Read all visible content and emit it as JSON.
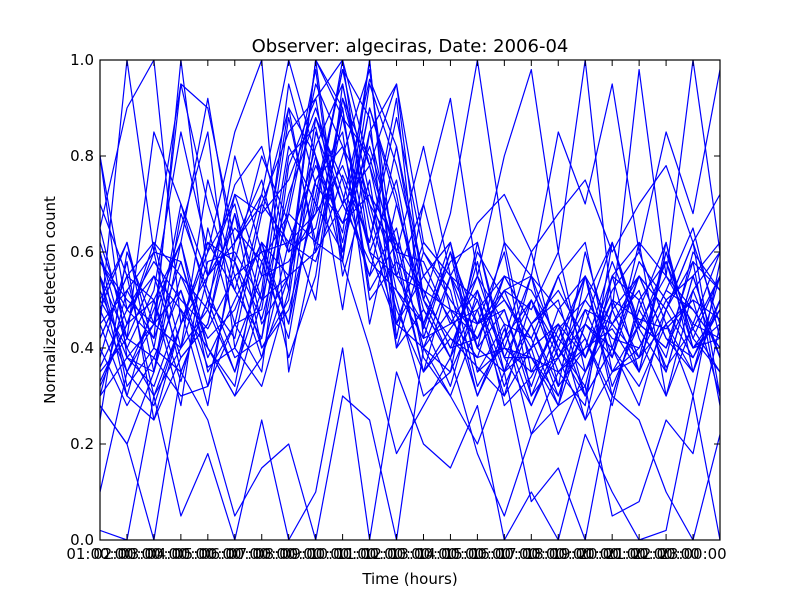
{
  "chart_data": {
    "type": "line",
    "title": "Observer: algeciras, Date: 2006-04",
    "xlabel": "Time (hours)",
    "ylabel": "Normalized detection count",
    "xlim": [
      1,
      24
    ],
    "ylim": [
      0.0,
      1.0
    ],
    "x_ticks": [
      {
        "value": 1,
        "label": "01:00:00"
      },
      {
        "value": 2,
        "label": "02:00:00"
      },
      {
        "value": 3,
        "label": "03:00:00"
      },
      {
        "value": 4,
        "label": "04:00:00"
      },
      {
        "value": 5,
        "label": "05:00:00"
      },
      {
        "value": 6,
        "label": "06:00:00"
      },
      {
        "value": 7,
        "label": "07:00:00"
      },
      {
        "value": 8,
        "label": "08:00:00"
      },
      {
        "value": 9,
        "label": "09:00:00"
      },
      {
        "value": 10,
        "label": "10:00:00"
      },
      {
        "value": 11,
        "label": "11:00:00"
      },
      {
        "value": 12,
        "label": "12:00:00"
      },
      {
        "value": 13,
        "label": "13:00:00"
      },
      {
        "value": 14,
        "label": "14:00:00"
      },
      {
        "value": 15,
        "label": "15:00:00"
      },
      {
        "value": 16,
        "label": "16:00:00"
      },
      {
        "value": 17,
        "label": "17:00:00"
      },
      {
        "value": 18,
        "label": "18:00:00"
      },
      {
        "value": 19,
        "label": "19:00:00"
      },
      {
        "value": 20,
        "label": "20:00:00"
      },
      {
        "value": 21,
        "label": "21:00:00"
      },
      {
        "value": 22,
        "label": "22:00:00"
      },
      {
        "value": 23,
        "label": "23:00:00"
      }
    ],
    "y_ticks": [
      {
        "value": 0.0,
        "label": "0.0"
      },
      {
        "value": 0.2,
        "label": "0.2"
      },
      {
        "value": 0.4,
        "label": "0.4"
      },
      {
        "value": 0.6,
        "label": "0.6"
      },
      {
        "value": 0.8,
        "label": "0.8"
      },
      {
        "value": 1.0,
        "label": "1.0"
      }
    ],
    "grid": false,
    "color": "#0000ff",
    "x": [
      1,
      2,
      3,
      4,
      5,
      6,
      7,
      8,
      9,
      10,
      11,
      12,
      13,
      14,
      15,
      16,
      17,
      18,
      19,
      20,
      21,
      22,
      23,
      24
    ],
    "series": [
      {
        "values": [
          0.8,
          0.48,
          0.42,
          1.0,
          0.55,
          0.62,
          0.7,
          0.85,
          0.92,
          1.0,
          0.78,
          0.95,
          0.62,
          0.55,
          0.45,
          0.52,
          0.38,
          0.3,
          0.45,
          0.4,
          0.55,
          0.48,
          0.62,
          0.45
        ]
      },
      {
        "values": [
          0.55,
          0.3,
          0.25,
          0.38,
          0.45,
          0.68,
          0.5,
          0.72,
          0.88,
          0.7,
          0.96,
          0.82,
          0.5,
          0.42,
          0.36,
          0.3,
          0.4,
          0.22,
          0.35,
          0.5,
          0.38,
          0.6,
          0.42,
          0.55
        ]
      },
      {
        "values": [
          0.45,
          0.52,
          0.6,
          0.58,
          0.4,
          0.32,
          0.62,
          0.55,
          1.0,
          0.88,
          0.6,
          0.75,
          0.45,
          0.58,
          0.62,
          0.38,
          0.5,
          0.35,
          0.28,
          0.62,
          0.45,
          0.4,
          0.52,
          0.38
        ]
      },
      {
        "values": [
          0.3,
          0.38,
          0.35,
          0.62,
          0.92,
          0.58,
          0.4,
          0.48,
          0.7,
          0.98,
          0.72,
          0.55,
          0.7,
          0.48,
          0.3,
          0.44,
          0.28,
          0.4,
          0.55,
          0.3,
          0.48,
          0.62,
          0.35,
          0.5
        ]
      },
      {
        "values": [
          0.62,
          0.45,
          0.5,
          0.33,
          0.55,
          0.74,
          0.82,
          0.6,
          0.65,
          0.9,
          0.52,
          0.62,
          0.4,
          0.35,
          0.48,
          0.55,
          0.45,
          0.32,
          0.4,
          0.44,
          0.35,
          0.48,
          0.58,
          0.28
        ]
      },
      {
        "values": [
          0.25,
          0.6,
          0.45,
          0.52,
          0.36,
          0.4,
          0.55,
          0.9,
          0.8,
          0.64,
          1.0,
          0.45,
          0.55,
          0.62,
          0.4,
          0.35,
          0.55,
          0.48,
          0.38,
          0.55,
          0.62,
          0.3,
          0.45,
          0.6
        ]
      },
      {
        "values": [
          0.48,
          0.35,
          0.28,
          0.45,
          0.62,
          0.58,
          0.46,
          0.68,
          0.95,
          0.82,
          0.7,
          0.6,
          0.35,
          0.44,
          0.52,
          0.28,
          0.34,
          0.45,
          0.3,
          0.4,
          0.58,
          0.5,
          0.4,
          0.48
        ]
      },
      {
        "values": [
          0.7,
          0.55,
          0.62,
          0.4,
          0.48,
          0.8,
          0.6,
          0.45,
          0.72,
          0.98,
          0.88,
          0.4,
          0.48,
          0.38,
          0.6,
          0.5,
          0.42,
          0.55,
          0.62,
          0.35,
          0.4,
          0.52,
          0.65,
          0.42
        ]
      },
      {
        "values": [
          0.4,
          0.28,
          0.38,
          0.3,
          0.32,
          0.45,
          0.7,
          0.62,
          0.58,
          0.76,
          0.62,
          0.88,
          0.6,
          0.52,
          0.3,
          0.42,
          0.6,
          0.38,
          0.25,
          0.48,
          0.55,
          0.42,
          0.38,
          0.5
        ]
      },
      {
        "values": [
          0.58,
          0.5,
          0.45,
          0.95,
          0.7,
          0.52,
          0.42,
          0.8,
          0.86,
          0.62,
          0.9,
          0.72,
          0.44,
          0.6,
          0.45,
          0.6,
          0.3,
          0.44,
          0.5,
          0.62,
          0.44,
          0.35,
          0.55,
          0.62
        ]
      },
      {
        "values": [
          0.35,
          0.42,
          0.55,
          0.48,
          0.28,
          0.62,
          0.75,
          0.52,
          1.0,
          0.9,
          0.5,
          0.58,
          0.52,
          0.4,
          0.55,
          0.45,
          0.22,
          0.35,
          0.42,
          0.28,
          0.5,
          0.58,
          0.44,
          0.35
        ]
      },
      {
        "values": [
          0.5,
          0.62,
          0.4,
          0.7,
          0.5,
          0.35,
          0.52,
          0.95,
          0.74,
          0.66,
          0.82,
          0.62,
          0.4,
          0.48,
          0.42,
          0.52,
          0.48,
          0.6,
          0.35,
          0.45,
          0.38,
          0.45,
          0.3,
          0.58
        ]
      },
      {
        "values": [
          0.28,
          0.2,
          0.35,
          0.55,
          0.42,
          0.48,
          0.62,
          0.38,
          0.55,
          0.92,
          0.7,
          0.5,
          0.3,
          0.35,
          0.62,
          0.4,
          0.38,
          0.28,
          0.45,
          0.38,
          0.62,
          0.55,
          0.48,
          0.4
        ]
      },
      {
        "values": [
          0.6,
          0.4,
          0.52,
          0.85,
          0.6,
          0.7,
          0.45,
          0.55,
          0.8,
          0.58,
          0.95,
          0.78,
          0.55,
          0.46,
          0.38,
          0.55,
          0.52,
          0.42,
          0.55,
          0.32,
          0.45,
          0.4,
          0.58,
          0.52
        ]
      },
      {
        "values": [
          0.42,
          0.55,
          0.3,
          0.4,
          0.75,
          0.55,
          0.38,
          0.62,
          0.68,
          1.0,
          0.6,
          0.45,
          0.62,
          0.55,
          0.5,
          0.32,
          0.45,
          0.5,
          0.3,
          0.55,
          0.35,
          0.62,
          0.4,
          0.45
        ]
      },
      {
        "values": [
          0.32,
          0.45,
          0.6,
          0.35,
          0.5,
          0.42,
          0.68,
          0.75,
          0.9,
          0.72,
          0.55,
          0.65,
          0.38,
          0.3,
          0.45,
          0.48,
          0.3,
          0.38,
          0.48,
          0.45,
          0.52,
          0.35,
          0.55,
          0.38
        ]
      },
      {
        "values": [
          0.55,
          0.35,
          0.48,
          0.62,
          0.4,
          0.3,
          0.5,
          0.88,
          0.62,
          0.8,
          0.98,
          0.55,
          0.45,
          0.62,
          0.35,
          0.4,
          0.55,
          0.32,
          0.6,
          0.4,
          0.28,
          0.48,
          0.62,
          0.3
        ]
      },
      {
        "values": [
          0.38,
          0.58,
          0.25,
          0.45,
          0.55,
          0.65,
          0.58,
          0.42,
          0.75,
          0.85,
          0.45,
          0.7,
          0.5,
          0.38,
          0.58,
          0.35,
          0.4,
          0.55,
          0.38,
          0.52,
          0.6,
          0.45,
          0.35,
          0.55
        ]
      },
      {
        "values": [
          0.65,
          0.42,
          0.38,
          0.52,
          0.32,
          0.58,
          0.8,
          0.66,
          0.5,
          0.95,
          0.68,
          0.48,
          0.35,
          0.55,
          0.4,
          0.62,
          0.35,
          0.45,
          0.25,
          0.35,
          0.45,
          0.55,
          0.45,
          0.42
        ]
      },
      {
        "values": [
          0.45,
          0.3,
          0.5,
          0.28,
          0.65,
          0.45,
          0.35,
          0.78,
          0.92,
          0.6,
          0.85,
          0.6,
          0.58,
          0.45,
          0.48,
          0.3,
          0.5,
          0.38,
          0.45,
          0.62,
          0.42,
          0.3,
          0.52,
          0.6
        ]
      },
      {
        "values": [
          0.58,
          0.48,
          0.55,
          0.38,
          0.45,
          0.72,
          0.55,
          0.58,
          0.68,
          0.78,
          0.62,
          0.92,
          0.42,
          0.6,
          0.35,
          0.45,
          0.42,
          0.28,
          0.55,
          0.38,
          0.55,
          0.48,
          0.38,
          0.48
        ]
      },
      {
        "values": [
          0.3,
          0.52,
          0.42,
          0.58,
          0.38,
          0.5,
          0.62,
          0.45,
          0.85,
          0.7,
          0.58,
          0.52,
          0.45,
          0.32,
          0.52,
          0.38,
          0.28,
          0.42,
          0.35,
          0.48,
          0.35,
          0.6,
          0.42,
          0.35
        ]
      },
      {
        "values": [
          0.48,
          0.62,
          0.35,
          0.68,
          0.52,
          0.38,
          0.42,
          0.7,
          0.98,
          0.55,
          0.75,
          0.4,
          0.6,
          0.5,
          0.42,
          0.55,
          0.45,
          0.52,
          0.42,
          0.3,
          0.48,
          0.38,
          0.6,
          0.52
        ]
      },
      {
        "values": [
          0.52,
          0.38,
          0.45,
          0.4,
          0.58,
          0.6,
          0.5,
          0.55,
          0.6,
          0.88,
          0.8,
          0.58,
          0.35,
          0.42,
          0.38,
          0.4,
          0.35,
          0.38,
          0.5,
          0.42,
          0.4,
          0.52,
          0.48,
          0.4
        ]
      },
      {
        "values": [
          0.36,
          0.48,
          0.58,
          0.5,
          0.44,
          0.55,
          0.6,
          0.62,
          0.78,
          0.66,
          0.72,
          0.62,
          0.52,
          0.48,
          0.45,
          0.5,
          0.4,
          0.45,
          0.38,
          0.5,
          0.46,
          0.44,
          0.5,
          0.46
        ]
      },
      {
        "values": [
          0.5,
          0.4,
          0.3,
          0.45,
          0.62,
          0.52,
          0.72,
          0.6,
          0.82,
          0.95,
          0.65,
          0.45,
          0.4,
          0.55,
          0.32,
          0.42,
          0.5,
          0.4,
          0.32,
          0.55,
          0.5,
          0.36,
          0.44,
          0.55
        ]
      },
      {
        "values": [
          0.42,
          0.55,
          0.5,
          0.62,
          0.35,
          0.45,
          0.48,
          0.82,
          0.7,
          0.6,
          0.9,
          0.7,
          0.48,
          0.38,
          0.5,
          0.35,
          0.45,
          0.3,
          0.48,
          0.35,
          0.38,
          0.5,
          0.55,
          0.38
        ]
      },
      {
        "values": [
          0.6,
          0.32,
          0.4,
          0.35,
          0.5,
          0.68,
          0.4,
          0.5,
          0.88,
          0.75,
          0.55,
          0.82,
          0.55,
          0.62,
          0.4,
          0.48,
          0.32,
          0.48,
          0.55,
          0.45,
          0.55,
          0.42,
          0.35,
          0.5
        ]
      },
      {
        "values": [
          0.33,
          0.45,
          0.62,
          0.55,
          0.48,
          0.35,
          0.58,
          0.68,
          0.62,
          0.92,
          0.78,
          0.52,
          0.42,
          0.45,
          0.55,
          0.38,
          0.38,
          0.35,
          0.4,
          0.58,
          0.44,
          0.58,
          0.4,
          0.42
        ]
      },
      {
        "values": [
          0.8,
          0.38,
          0.32,
          0.48,
          0.4,
          0.3,
          0.38,
          0.55,
          0.75,
          0.82,
          0.6,
          0.55,
          0.52,
          0.4,
          0.42,
          0.52,
          0.55,
          0.4,
          0.3,
          0.4,
          0.32,
          0.45,
          0.5,
          0.3
        ]
      },
      {
        "values": [
          0.1,
          0.35,
          0.45,
          0.65,
          0.85,
          0.4,
          0.32,
          0.52,
          1.0,
          0.58,
          0.4,
          0.18,
          0.28,
          0.38,
          0.18,
          0.05,
          0.22,
          0.28,
          0.32,
          0.05,
          0.08,
          0.25,
          0.18,
          0.45
        ]
      },
      {
        "values": [
          0.02,
          0.0,
          0.3,
          0.05,
          0.18,
          0.0,
          0.25,
          0.0,
          0.1,
          0.4,
          0.0,
          0.35,
          0.2,
          0.15,
          0.28,
          0.0,
          0.1,
          0.0,
          0.22,
          0.1,
          0.0,
          0.02,
          0.3,
          0.0
        ]
      },
      {
        "values": [
          0.28,
          0.2,
          0.0,
          0.35,
          0.25,
          0.05,
          0.15,
          0.2,
          0.0,
          0.3,
          0.25,
          0.0,
          0.4,
          0.3,
          0.2,
          0.35,
          0.08,
          0.15,
          0.0,
          0.3,
          0.25,
          0.1,
          0.0,
          0.22
        ]
      },
      {
        "values": [
          0.65,
          0.9,
          1.0,
          0.45,
          0.6,
          0.85,
          1.0,
          0.35,
          0.62,
          0.58,
          1.0,
          0.42,
          0.7,
          0.92,
          0.55,
          0.8,
          0.98,
          0.6,
          1.0,
          0.48,
          0.98,
          0.55,
          1.0,
          0.6
        ]
      },
      {
        "values": [
          0.45,
          1.0,
          0.6,
          0.95,
          0.9,
          0.62,
          0.72,
          1.0,
          0.8,
          0.48,
          0.85,
          0.95,
          0.5,
          0.68,
          1.0,
          0.62,
          0.55,
          0.85,
          0.7,
          0.95,
          0.6,
          0.85,
          0.68,
          0.98
        ]
      },
      {
        "values": [
          0.55,
          0.42,
          0.85,
          0.7,
          0.55,
          0.72,
          0.68,
          0.9,
          0.6,
          0.7,
          0.78,
          0.6,
          0.82,
          0.55,
          0.66,
          0.72,
          0.6,
          0.68,
          0.75,
          0.6,
          0.7,
          0.78,
          0.62,
          0.72
        ]
      }
    ]
  }
}
